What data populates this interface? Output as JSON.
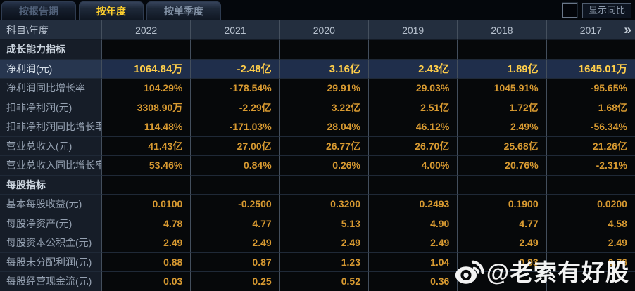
{
  "tabs": [
    {
      "label": "按报告期",
      "active": false
    },
    {
      "label": "按年度",
      "active": true
    },
    {
      "label": "按单季度",
      "active": false
    }
  ],
  "controls": {
    "show_yoy_label": "显示同比",
    "show_yoy_checked": false,
    "scroll_right_icon": "»"
  },
  "table": {
    "corner_label": "科目\\年度",
    "years": [
      "2022",
      "2021",
      "2020",
      "2019",
      "2018",
      "2017"
    ],
    "rows": [
      {
        "type": "section",
        "label": "成长能力指标"
      },
      {
        "type": "data",
        "highlight": true,
        "label": "净利润(元)",
        "values": [
          "1064.84万",
          "-2.48亿",
          "3.16亿",
          "2.43亿",
          "1.89亿",
          "1645.01万"
        ]
      },
      {
        "type": "data",
        "highlight": false,
        "label": "净利润同比增长率",
        "values": [
          "104.29%",
          "-178.54%",
          "29.91%",
          "29.03%",
          "1045.91%",
          "-95.65%"
        ]
      },
      {
        "type": "data",
        "highlight": false,
        "label": "扣非净利润(元)",
        "values": [
          "3308.90万",
          "-2.29亿",
          "3.22亿",
          "2.51亿",
          "1.72亿",
          "1.68亿"
        ]
      },
      {
        "type": "data",
        "highlight": false,
        "label": "扣非净利润同比增长率",
        "values": [
          "114.48%",
          "-171.03%",
          "28.04%",
          "46.12%",
          "2.49%",
          "-56.34%"
        ]
      },
      {
        "type": "data",
        "highlight": false,
        "label": "营业总收入(元)",
        "values": [
          "41.43亿",
          "27.00亿",
          "26.77亿",
          "26.70亿",
          "25.68亿",
          "21.26亿"
        ]
      },
      {
        "type": "data",
        "highlight": false,
        "label": "营业总收入同比增长率",
        "values": [
          "53.46%",
          "0.84%",
          "0.26%",
          "4.00%",
          "20.76%",
          "-2.31%"
        ]
      },
      {
        "type": "section",
        "label": "每股指标"
      },
      {
        "type": "data",
        "highlight": false,
        "label": "基本每股收益(元)",
        "values": [
          "0.0100",
          "-0.2500",
          "0.3200",
          "0.2493",
          "0.1900",
          "0.0200"
        ]
      },
      {
        "type": "data",
        "highlight": false,
        "label": "每股净资产(元)",
        "values": [
          "4.78",
          "4.77",
          "5.13",
          "4.90",
          "4.77",
          "4.58"
        ]
      },
      {
        "type": "data",
        "highlight": false,
        "label": "每股资本公积金(元)",
        "values": [
          "2.49",
          "2.49",
          "2.49",
          "2.49",
          "2.49",
          "2.49"
        ]
      },
      {
        "type": "data",
        "highlight": false,
        "label": "每股未分配利润(元)",
        "values": [
          "0.88",
          "0.87",
          "1.23",
          "1.04",
          "0.93",
          "0.76"
        ]
      },
      {
        "type": "data",
        "highlight": false,
        "label": "每股经营现金流(元)",
        "values": [
          "0.03",
          "0.25",
          "0.52",
          "0.36",
          "",
          ""
        ]
      }
    ]
  },
  "watermark": {
    "text": "@老索有好股",
    "icon": "weibo-icon"
  },
  "colors": {
    "accent_gold": "#ffd02e",
    "value_orange": "#d89a31",
    "highlight_value": "#ffce4a",
    "highlight_row_bg": "#1f2e4b",
    "header_bg": "#232e3e",
    "label_col_bg": "#161d28",
    "value_cell_bg": "#06080a",
    "grid_vertical": "#434e5c",
    "grid_horizontal": "#1f2937"
  }
}
